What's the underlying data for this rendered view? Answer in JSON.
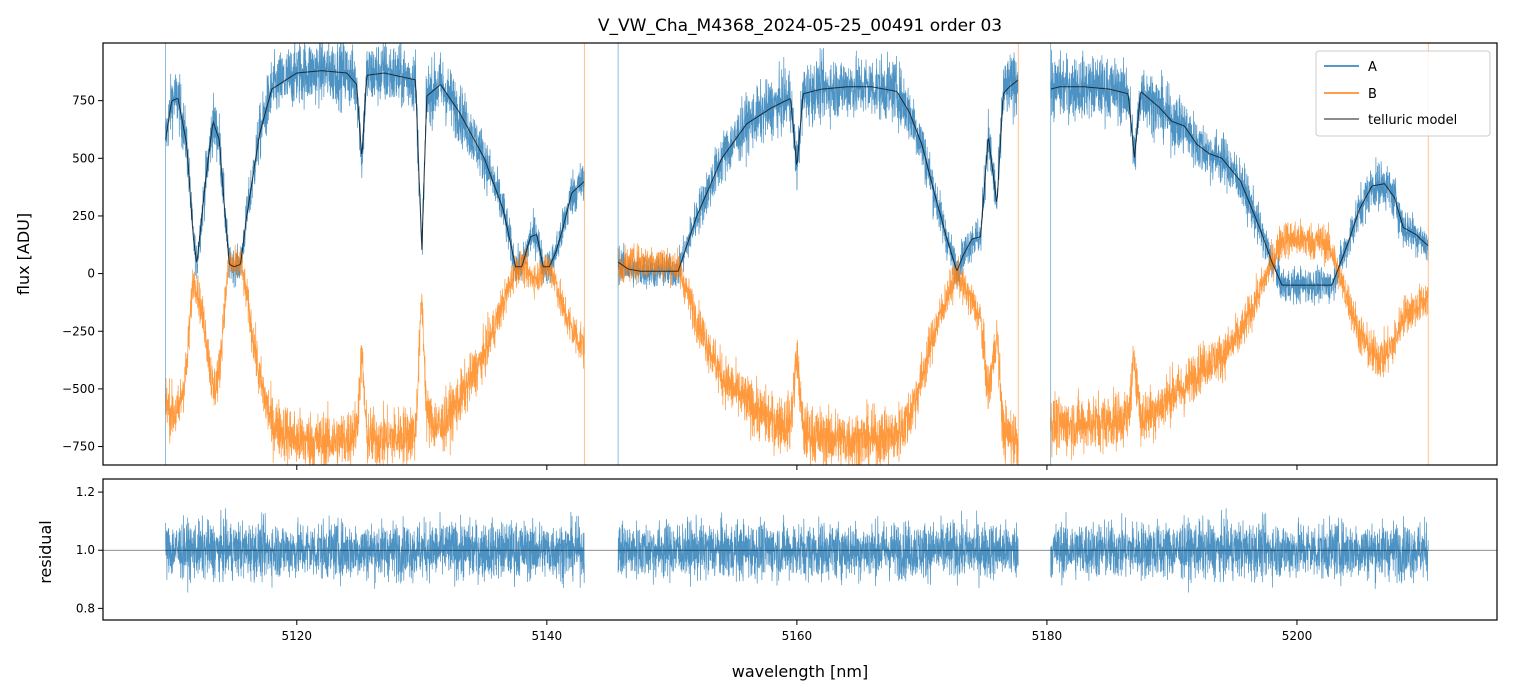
{
  "chart_data": [
    {
      "type": "line",
      "title": "V_VW_Cha_M4368_2024-05-25_00491  order 03",
      "xlabel": "",
      "ylabel": "flux [ADU]",
      "xlim": [
        5104.5,
        5216
      ],
      "ylim": [
        -830,
        1000
      ],
      "xticks": [
        5120,
        5140,
        5160,
        5180,
        5200
      ],
      "yticks": [
        -750,
        -500,
        -250,
        0,
        250,
        500,
        750
      ],
      "ytick_labels": [
        "−750",
        "−500",
        "−250",
        "0",
        "250",
        "500",
        "750"
      ],
      "legend_position": "top-right",
      "series": [
        {
          "name": "A",
          "color": "#1f77b4",
          "noise": 60,
          "segments": [
            {
              "x": [
                5109.5,
                5110.0,
                5110.5,
                5111.2,
                5111.7,
                5112.0,
                5112.7,
                5113.3,
                5113.8,
                5114.2,
                5114.6,
                5115.0,
                5115.5,
                5116.0,
                5117.0,
                5118.0,
                5120.0,
                5122.0,
                5124.0,
                5124.8,
                5125.2,
                5125.6,
                5127.0,
                5129.5,
                5130.0,
                5130.4,
                5131.5,
                5133.0,
                5135.0,
                5136.5,
                5137.5,
                5138.0,
                5138.7,
                5139.2,
                5139.7,
                5140.2,
                5140.7,
                5141.2,
                5142.0,
                5143.0
              ],
              "y": [
                580,
                750,
                760,
                560,
                170,
                40,
                400,
                660,
                580,
                300,
                40,
                30,
                40,
                250,
                600,
                800,
                870,
                880,
                870,
                820,
                500,
                860,
                870,
                840,
                100,
                770,
                820,
                700,
                500,
                280,
                30,
                30,
                160,
                170,
                30,
                30,
                90,
                180,
                350,
                400
              ]
            },
            {
              "x": [
                5145.7,
                5146.5,
                5147.5,
                5149.0,
                5150.5,
                5152.0,
                5154.0,
                5156.0,
                5158.0,
                5159.5,
                5160.0,
                5160.5,
                5162.0,
                5164.0,
                5166.0,
                5168.0,
                5169.0,
                5170.0,
                5171.0,
                5172.0,
                5172.8,
                5173.3,
                5174.0,
                5174.7,
                5175.3,
                5176.0,
                5176.5,
                5177.0,
                5177.7
              ],
              "y": [
                50,
                20,
                10,
                10,
                10,
                250,
                500,
                650,
                720,
                760,
                460,
                780,
                800,
                810,
                810,
                790,
                700,
                560,
                350,
                150,
                10,
                80,
                150,
                160,
                600,
                300,
                780,
                810,
                840
              ]
            },
            {
              "x": [
                5180.3,
                5181.0,
                5183.0,
                5185.0,
                5186.5,
                5187.0,
                5187.5,
                5189.0,
                5190.0,
                5191.0,
                5192.0,
                5193.0,
                5194.0,
                5195.5,
                5197.0,
                5198.0,
                5198.8,
                5200.0,
                5201.0,
                5202.0,
                5202.8,
                5203.5,
                5204.0,
                5205.0,
                5206.0,
                5207.0,
                5207.8,
                5208.5,
                5209.5,
                5210.5
              ],
              "y": [
                800,
                810,
                810,
                800,
                780,
                500,
                790,
                720,
                660,
                640,
                560,
                520,
                500,
                400,
                200,
                50,
                -50,
                -50,
                -50,
                -50,
                -50,
                50,
                120,
                280,
                380,
                390,
                330,
                200,
                170,
                120
              ]
            }
          ]
        },
        {
          "name": "B",
          "color": "#ff7f0e",
          "noise": 60,
          "segments": [
            {
              "x": [
                5109.5,
                5110.0,
                5110.5,
                5111.2,
                5111.7,
                5112.0,
                5112.7,
                5113.3,
                5113.8,
                5114.2,
                5114.6,
                5115.0,
                5115.5,
                5116.0,
                5117.0,
                5118.0,
                5120.0,
                5122.0,
                5124.0,
                5124.8,
                5125.2,
                5125.6,
                5127.0,
                5129.5,
                5130.0,
                5130.4,
                5131.5,
                5133.0,
                5135.0,
                5136.5,
                5137.5,
                5138.0,
                5138.7,
                5139.2,
                5139.7,
                5140.2,
                5140.7,
                5141.2,
                5142.0,
                5143.0
              ],
              "y": [
                -560,
                -600,
                -610,
                -410,
                -20,
                -60,
                -250,
                -510,
                -430,
                -150,
                50,
                30,
                50,
                -100,
                -450,
                -650,
                -720,
                -730,
                -720,
                -670,
                -350,
                -710,
                -720,
                -690,
                -100,
                -620,
                -670,
                -550,
                -350,
                -130,
                20,
                30,
                -10,
                -20,
                20,
                30,
                -30,
                -140,
                -240,
                -320
              ]
            },
            {
              "x": [
                5145.7,
                5146.5,
                5147.5,
                5149.0,
                5150.5,
                5152.0,
                5154.0,
                5156.0,
                5158.0,
                5159.5,
                5160.0,
                5160.5,
                5162.0,
                5164.0,
                5166.0,
                5168.0,
                5169.0,
                5170.0,
                5171.0,
                5172.0,
                5172.8,
                5173.3,
                5174.0,
                5174.7,
                5175.3,
                5176.0,
                5176.5,
                5177.0,
                5177.7
              ],
              "y": [
                20,
                40,
                50,
                50,
                30,
                -200,
                -450,
                -560,
                -640,
                -650,
                -350,
                -690,
                -710,
                -720,
                -720,
                -700,
                -620,
                -450,
                -250,
                -100,
                0,
                -60,
                -120,
                -200,
                -520,
                -260,
                -680,
                -700,
                -720
              ]
            },
            {
              "x": [
                5180.3,
                5181.0,
                5183.0,
                5185.0,
                5186.5,
                5187.0,
                5187.5,
                5189.0,
                5190.0,
                5191.0,
                5192.0,
                5193.0,
                5194.0,
                5195.5,
                5197.0,
                5198.0,
                5198.8,
                5200.0,
                5201.0,
                5202.0,
                5202.8,
                5203.5,
                5204.0,
                5205.0,
                5206.0,
                5207.0,
                5207.8,
                5208.5,
                5209.5,
                5210.5
              ],
              "y": [
                -650,
                -660,
                -650,
                -640,
                -620,
                -360,
                -630,
                -580,
                -520,
                -500,
                -420,
                -380,
                -360,
                -260,
                -80,
                50,
                150,
                150,
                140,
                140,
                100,
                -30,
                -100,
                -260,
                -350,
                -360,
                -300,
                -180,
                -150,
                -100
              ]
            }
          ]
        },
        {
          "name": "telluric model",
          "color": "#000000",
          "segments": [
            {
              "x": [
                5109.5,
                5110.0,
                5110.5,
                5111.2,
                5111.7,
                5112.0,
                5112.7,
                5113.3,
                5113.8,
                5114.2,
                5114.6,
                5115.0,
                5115.5,
                5116.0,
                5117.0,
                5118.0,
                5120.0,
                5122.0,
                5124.0,
                5124.8,
                5125.2,
                5125.6,
                5127.0,
                5129.5,
                5130.0,
                5130.4,
                5131.5,
                5133.0,
                5135.0,
                5136.5,
                5137.5,
                5138.0,
                5138.7,
                5139.2,
                5139.7,
                5140.2,
                5140.7,
                5141.2,
                5142.0,
                5143.0
              ],
              "y": [
                580,
                750,
                760,
                560,
                170,
                40,
                400,
                660,
                580,
                300,
                40,
                30,
                40,
                250,
                600,
                800,
                870,
                880,
                870,
                820,
                500,
                860,
                870,
                840,
                100,
                770,
                820,
                700,
                500,
                280,
                30,
                30,
                160,
                170,
                30,
                30,
                90,
                180,
                350,
                400
              ]
            },
            {
              "x": [
                5145.7,
                5146.5,
                5147.5,
                5149.0,
                5150.5,
                5152.0,
                5154.0,
                5156.0,
                5158.0,
                5159.5,
                5160.0,
                5160.5,
                5162.0,
                5164.0,
                5166.0,
                5168.0,
                5169.0,
                5170.0,
                5171.0,
                5172.0,
                5172.8,
                5173.3,
                5174.0,
                5174.7,
                5175.3,
                5176.0,
                5176.5,
                5177.0,
                5177.7
              ],
              "y": [
                50,
                20,
                10,
                10,
                10,
                250,
                500,
                650,
                720,
                760,
                460,
                780,
                800,
                810,
                810,
                790,
                700,
                560,
                350,
                150,
                10,
                80,
                150,
                160,
                600,
                300,
                780,
                810,
                840
              ]
            },
            {
              "x": [
                5180.3,
                5181.0,
                5183.0,
                5185.0,
                5186.5,
                5187.0,
                5187.5,
                5189.0,
                5190.0,
                5191.0,
                5192.0,
                5193.0,
                5194.0,
                5195.5,
                5197.0,
                5198.0,
                5198.8,
                5200.0,
                5201.0,
                5202.0,
                5202.8,
                5203.5,
                5204.0,
                5205.0,
                5206.0,
                5207.0,
                5207.8,
                5208.5,
                5209.5,
                5210.5
              ],
              "y": [
                800,
                810,
                810,
                800,
                780,
                500,
                790,
                720,
                660,
                640,
                560,
                520,
                500,
                400,
                200,
                50,
                -50,
                -50,
                -50,
                -50,
                -50,
                50,
                120,
                280,
                380,
                390,
                330,
                200,
                170,
                120
              ]
            }
          ]
        }
      ]
    },
    {
      "type": "line",
      "title": "",
      "xlabel": "wavelength [nm]",
      "ylabel": "residual",
      "xlim": [
        5104.5,
        5216
      ],
      "ylim": [
        0.76,
        1.245
      ],
      "xticks": [
        5120,
        5140,
        5160,
        5180,
        5200
      ],
      "yticks": [
        0.8,
        1.0,
        1.2
      ],
      "ytick_labels": [
        "0.8",
        "1.0",
        "1.2"
      ],
      "reference_line": 1.0,
      "series": [
        {
          "name": "",
          "color": "#1f77b4",
          "center": 1.0,
          "noise_std": 0.07,
          "segments": [
            [
              5109.5,
              5143.0
            ],
            [
              5145.7,
              5177.7
            ],
            [
              5180.3,
              5210.5
            ]
          ]
        }
      ]
    }
  ]
}
